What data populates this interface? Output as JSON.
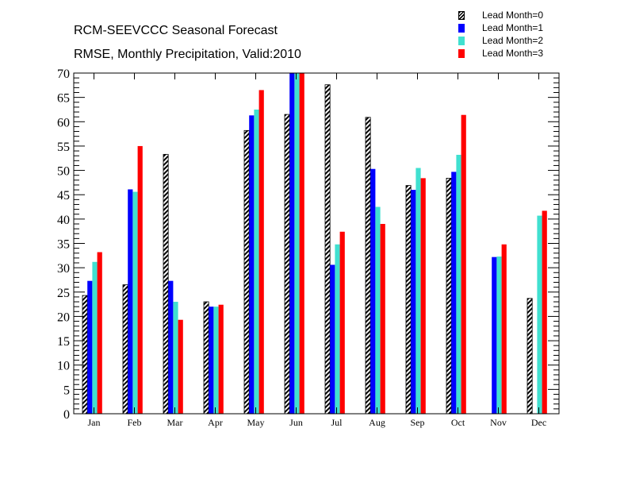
{
  "chart_data": {
    "type": "bar",
    "title": "RCM-SEEVCCC Seasonal Forecast",
    "subtitle": "RMSE, Monthly Precipitation, Valid:2010",
    "xlabel": "",
    "ylabel": "",
    "ylim": [
      0,
      70
    ],
    "yticks": [
      0,
      5,
      10,
      15,
      20,
      25,
      30,
      35,
      40,
      45,
      50,
      55,
      60,
      65,
      70
    ],
    "categories": [
      "Jan",
      "Feb",
      "Mar",
      "Apr",
      "May",
      "Jun",
      "Jul",
      "Aug",
      "Sep",
      "Oct",
      "Nov",
      "Dec"
    ],
    "legend_position": "top-right",
    "grid": false,
    "series": [
      {
        "name": "Lead Month=0",
        "color": "#000000",
        "pattern": "hatched",
        "values": [
          24.3,
          26.5,
          53.3,
          23.0,
          58.2,
          61.5,
          67.6,
          60.9,
          46.9,
          48.4,
          null,
          23.7
        ]
      },
      {
        "name": "Lead Month=1",
        "color": "#0000ff",
        "values": [
          27.3,
          46.1,
          27.3,
          22.0,
          61.3,
          70.0,
          30.6,
          50.3,
          46.0,
          49.7,
          32.2,
          null
        ]
      },
      {
        "name": "Lead Month=2",
        "color": "#40e0d0",
        "values": [
          31.2,
          45.6,
          23.0,
          22.0,
          62.5,
          70.0,
          34.8,
          42.5,
          50.5,
          53.2,
          32.3,
          40.7
        ]
      },
      {
        "name": "Lead Month=3",
        "color": "#ff0000",
        "values": [
          33.2,
          55.0,
          19.3,
          22.4,
          66.5,
          70.0,
          37.4,
          39.0,
          48.4,
          61.4,
          34.8,
          41.7
        ]
      }
    ]
  }
}
